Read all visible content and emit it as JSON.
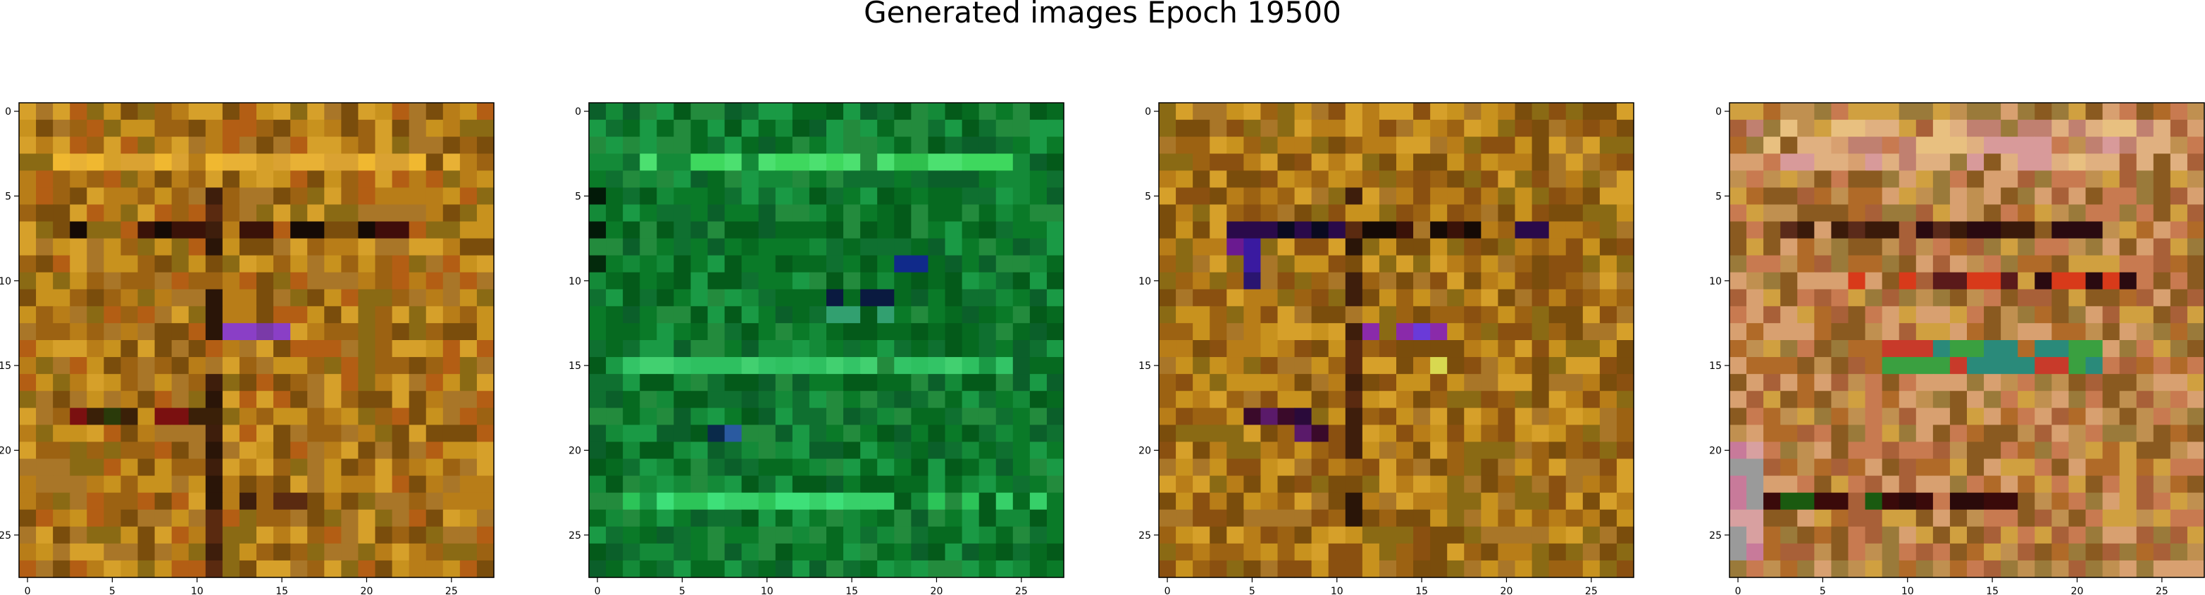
{
  "figure": {
    "title": "Generated images Epoch 19500"
  },
  "chart_data": [
    {
      "type": "heatmap",
      "title": "",
      "xlabel": "",
      "ylabel": "",
      "grid_size": [
        28,
        28
      ],
      "xlim": [
        -0.5,
        27.5
      ],
      "ylim": [
        27.5,
        -0.5
      ],
      "x_ticks": [
        "0",
        "5",
        "10",
        "15",
        "20",
        "25"
      ],
      "y_ticks": [
        "0",
        "5",
        "10",
        "15",
        "20",
        "25"
      ],
      "palette": [
        "#b87d18",
        "#9c6212",
        "#c8921e",
        "#7a4d0c",
        "#d6a02a",
        "#b35e14",
        "#8a6a14",
        "#a97628"
      ],
      "features": [
        {
          "rows": [
            3,
            3
          ],
          "cols": [
            2,
            26
          ],
          "colors": [
            "#e8b135",
            "#f0b830",
            "#daa232"
          ]
        },
        {
          "rows": [
            7,
            7
          ],
          "cols": [
            3,
            17
          ],
          "colors": [
            "#150a05",
            "#3a1208",
            "#5a2410"
          ]
        },
        {
          "rows": [
            7,
            7
          ],
          "cols": [
            20,
            23
          ],
          "colors": [
            "#150a05",
            "#400d0a"
          ]
        },
        {
          "rows": [
            5,
            27
          ],
          "cols": [
            11,
            11
          ],
          "colors": [
            "#3e1e0c",
            "#5a2a10",
            "#2a1508"
          ]
        },
        {
          "rows": [
            13,
            13
          ],
          "cols": [
            12,
            15
          ],
          "colors": [
            "#5b5be0",
            "#8a3fc6",
            "#7a3aa8"
          ]
        },
        {
          "rows": [
            18,
            18
          ],
          "cols": [
            3,
            11
          ],
          "colors": [
            "#3a2008",
            "#7a1010",
            "#2a3a0a"
          ]
        },
        {
          "rows": [
            23,
            23
          ],
          "cols": [
            11,
            16
          ],
          "colors": [
            "#3e1e0c",
            "#5a2a10"
          ]
        }
      ]
    },
    {
      "type": "heatmap",
      "title": "",
      "xlabel": "",
      "ylabel": "",
      "grid_size": [
        28,
        28
      ],
      "xlim": [
        -0.5,
        27.5
      ],
      "ylim": [
        27.5,
        -0.5
      ],
      "x_ticks": [
        "0",
        "5",
        "10",
        "15",
        "20",
        "25"
      ],
      "y_ticks": [
        "0",
        "5",
        "10",
        "15",
        "20",
        "25"
      ],
      "palette": [
        "#0a7a28",
        "#066a20",
        "#148a38",
        "#045a1a",
        "#1a9a45",
        "#0b5f2a",
        "#238b3d",
        "#0f7030"
      ],
      "features": [
        {
          "rows": [
            3,
            3
          ],
          "cols": [
            2,
            25
          ],
          "colors": [
            "#3ed85e",
            "#2fc04d",
            "#4ce070"
          ]
        },
        {
          "rows": [
            15,
            15
          ],
          "cols": [
            2,
            24
          ],
          "colors": [
            "#33c466",
            "#2ec060",
            "#42d070"
          ]
        },
        {
          "rows": [
            23,
            23
          ],
          "cols": [
            2,
            26
          ],
          "colors": [
            "#37d069",
            "#3ee079",
            "#2cc458"
          ]
        },
        {
          "rows": [
            5,
            10
          ],
          "cols": [
            0,
            0
          ],
          "colors": [
            "#021a08",
            "#032a0c"
          ]
        },
        {
          "rows": [
            9,
            9
          ],
          "cols": [
            17,
            19
          ],
          "colors": [
            "#08082a",
            "#102a8a",
            "#3a1055"
          ]
        },
        {
          "rows": [
            11,
            12
          ],
          "cols": [
            14,
            17
          ],
          "colors": [
            "#6a7a90",
            "#0a1a40",
            "#32a070"
          ]
        },
        {
          "rows": [
            19,
            19
          ],
          "cols": [
            6,
            8
          ],
          "colors": [
            "#2a5aa0",
            "#0a2a4a"
          ]
        }
      ]
    },
    {
      "type": "heatmap",
      "title": "",
      "xlabel": "",
      "ylabel": "",
      "grid_size": [
        28,
        28
      ],
      "xlim": [
        -0.5,
        27.5
      ],
      "ylim": [
        27.5,
        -0.5
      ],
      "x_ticks": [
        "0",
        "5",
        "10",
        "15",
        "20",
        "25"
      ],
      "y_ticks": [
        "0",
        "5",
        "10",
        "15",
        "20",
        "25"
      ],
      "palette": [
        "#b87d18",
        "#9c6212",
        "#c8921e",
        "#7a4d0c",
        "#d6a02a",
        "#8a5010",
        "#8a6a14",
        "#a97628"
      ],
      "features": [
        {
          "rows": [
            7,
            7
          ],
          "cols": [
            4,
            22
          ],
          "colors": [
            "#150a05",
            "#3a1208",
            "#0a0a20",
            "#2a0a4a"
          ]
        },
        {
          "rows": [
            5,
            24
          ],
          "cols": [
            11,
            11
          ],
          "colors": [
            "#3e1e0c",
            "#5a2a10",
            "#2a1508"
          ]
        },
        {
          "rows": [
            8,
            10
          ],
          "cols": [
            4,
            5
          ],
          "colors": [
            "#3a1aa0",
            "#6a1a90",
            "#2a1570"
          ]
        },
        {
          "rows": [
            13,
            13
          ],
          "cols": [
            12,
            16
          ],
          "colors": [
            "#4a3ae0",
            "#8a2aaa",
            "#6a3ad8"
          ]
        },
        {
          "rows": [
            18,
            19
          ],
          "cols": [
            5,
            9
          ],
          "colors": [
            "#2a0a3a",
            "#5a1a6a",
            "#3a0a2a"
          ]
        },
        {
          "rows": [
            15,
            15
          ],
          "cols": [
            16,
            16
          ],
          "colors": [
            "#d8d850"
          ]
        }
      ]
    },
    {
      "type": "heatmap",
      "title": "",
      "xlabel": "",
      "ylabel": "",
      "grid_size": [
        28,
        28
      ],
      "xlim": [
        -0.5,
        27.5
      ],
      "ylim": [
        27.5,
        -0.5
      ],
      "x_ticks": [
        "0",
        "5",
        "10",
        "15",
        "20",
        "25"
      ],
      "y_ticks": [
        "0",
        "5",
        "10",
        "15",
        "20",
        "25"
      ],
      "palette": [
        "#c09050",
        "#b06a28",
        "#d8a070",
        "#8a5a20",
        "#c87a50",
        "#9a7a3a",
        "#d0a040",
        "#a86038"
      ],
      "features": [
        {
          "rows": [
            1,
            3
          ],
          "cols": [
            1,
            26
          ],
          "colors": [
            "#e0b080",
            "#d89a9a",
            "#e8c080",
            "#c08070"
          ]
        },
        {
          "rows": [
            7,
            7
          ],
          "cols": [
            3,
            21
          ],
          "colors": [
            "#3a1a0a",
            "#5a2a1a",
            "#2a0a10"
          ]
        },
        {
          "rows": [
            10,
            10
          ],
          "cols": [
            7,
            23
          ],
          "colors": [
            "#2a0a10",
            "#d83a1a",
            "#5a1a1a"
          ]
        },
        {
          "rows": [
            14,
            15
          ],
          "cols": [
            9,
            21
          ],
          "colors": [
            "#2a8a7a",
            "#3aa040",
            "#c83a2a"
          ]
        },
        {
          "rows": [
            23,
            23
          ],
          "cols": [
            1,
            16
          ],
          "colors": [
            "#1a5a10",
            "#3a0a0a",
            "#2a0a0a"
          ]
        },
        {
          "rows": [
            19,
            26
          ],
          "cols": [
            0,
            1
          ],
          "colors": [
            "#c87a9a",
            "#9a9a9a",
            "#d8a0a0"
          ]
        }
      ]
    }
  ]
}
